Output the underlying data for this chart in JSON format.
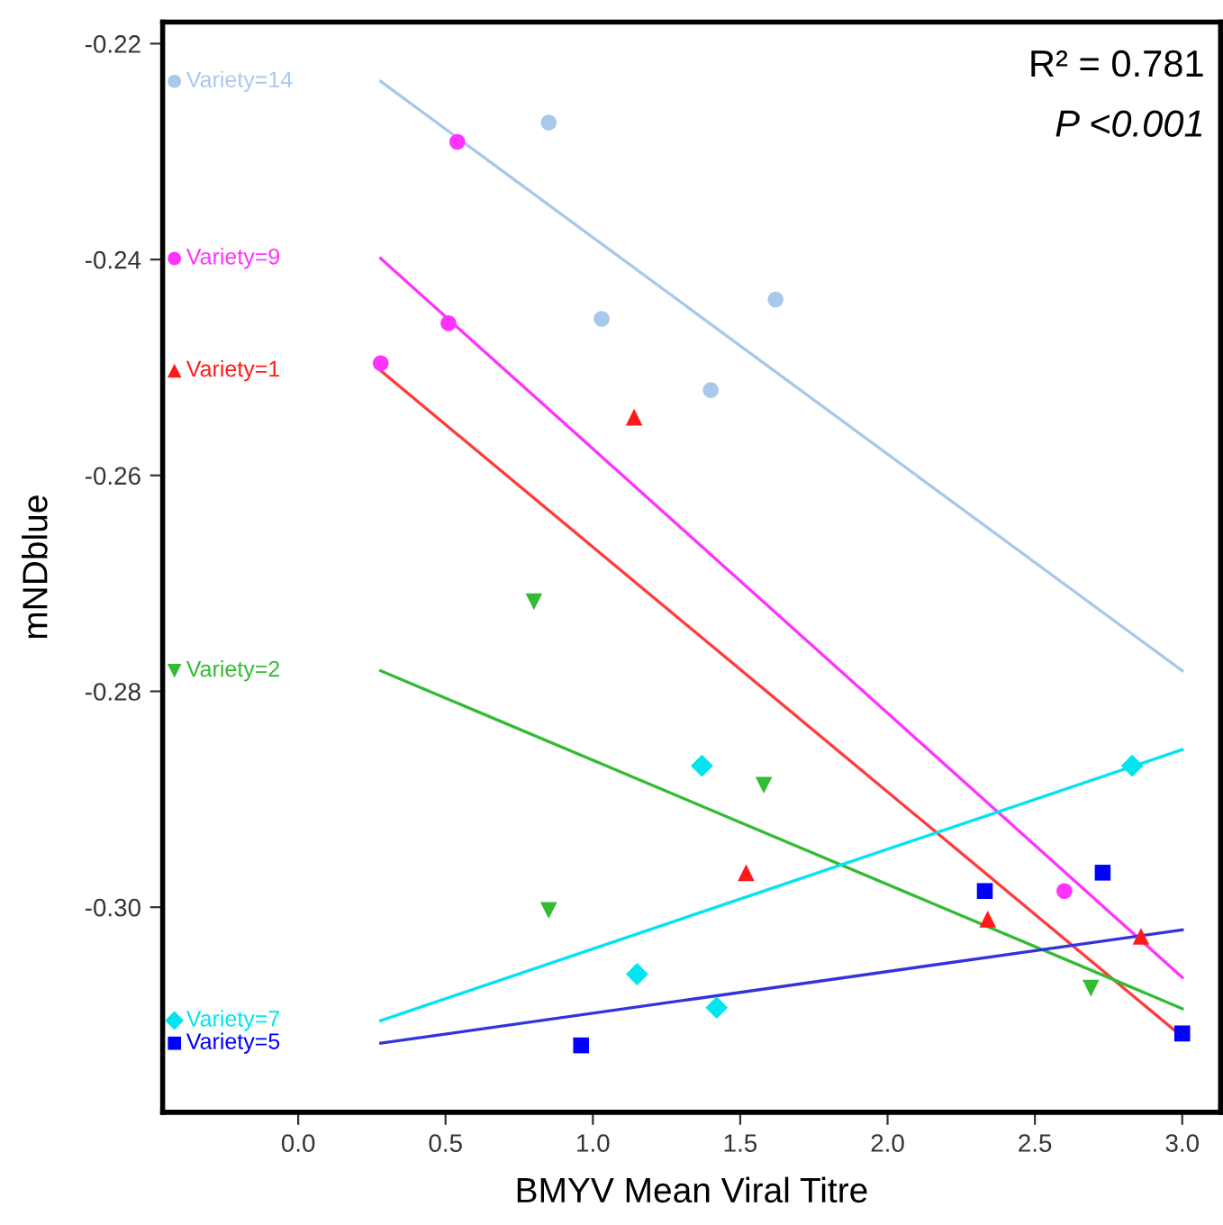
{
  "chart_data": {
    "type": "scatter",
    "xlabel": "BMYV Mean Viral Titre",
    "ylabel": "mNDblue",
    "xlim": [
      -0.46,
      3.13
    ],
    "ylim": [
      -0.319,
      -0.218
    ],
    "xticks": [
      {
        "value": 0,
        "label": "0.0"
      },
      0.5,
      {
        "value": 1,
        "label": "1.0"
      },
      1.5,
      {
        "value": 2,
        "label": "2.0"
      },
      2.5,
      {
        "value": 3,
        "label": "3.0"
      }
    ],
    "yticks": [
      {
        "value": -0.3,
        "label": "-0.30"
      },
      -0.28,
      -0.26,
      -0.24,
      -0.22
    ],
    "grid": false,
    "legend": "left",
    "annotations": [
      "R² = 0.781",
      "P <0.001"
    ],
    "series": [
      {
        "name": "Variety=14",
        "marker": "circle",
        "color": "#a8c8ec",
        "x": [
          0.85,
          1.03,
          1.62,
          1.4
        ],
        "values": [
          -0.2273,
          -0.2455,
          -0.2437,
          -0.2521
        ]
      },
      {
        "type": "line",
        "color": "#a8c8ec",
        "x": [
          0.28,
          3.0
        ],
        "values": [
          -0.2235,
          -0.2781
        ]
      },
      {
        "name": "Variety=9",
        "marker": "circle",
        "color": "#ff33ff",
        "x": [
          0.54,
          0.51,
          0.28,
          2.6
        ],
        "values": [
          -0.2291,
          -0.2459,
          -0.2496,
          -0.2985
        ]
      },
      {
        "type": "line",
        "color": "#ff33ff",
        "x": [
          0.28,
          3.0
        ],
        "values": [
          -0.2399,
          -0.3065
        ]
      },
      {
        "name": "Variety=1",
        "marker": "triangle",
        "color": "#ff1a1a",
        "x": [
          1.14,
          1.52,
          2.34,
          2.86
        ],
        "values": [
          -0.2546,
          -0.2968,
          -0.3011,
          -0.3027
        ]
      },
      {
        "type": "line",
        "color": "#ff3b3b",
        "x": [
          0.28,
          3.0
        ],
        "values": [
          -0.2503,
          -0.312
        ]
      },
      {
        "name": "Variety=2",
        "marker": "triangle_down",
        "color": "#33bb33",
        "x": [
          0.8,
          0.85,
          1.58,
          2.69
        ],
        "values": [
          -0.2717,
          -0.3003,
          -0.2887,
          -0.3075
        ]
      },
      {
        "type": "line",
        "color": "#33bb33",
        "x": [
          0.28,
          3.0
        ],
        "values": [
          -0.2781,
          -0.3094
        ]
      },
      {
        "name": "Variety=7",
        "marker": "diamond",
        "color": "#00e5ee",
        "x": [
          1.37,
          1.15,
          1.42,
          2.83
        ],
        "values": [
          -0.2869,
          -0.3062,
          -0.3093,
          -0.2869
        ]
      },
      {
        "type": "line",
        "color": "#00e5ee",
        "x": [
          0.28,
          3.0
        ],
        "values": [
          -0.3105,
          -0.2854
        ]
      },
      {
        "name": "Variety=5",
        "marker": "square",
        "color": "#0000ff",
        "x": [
          0.96,
          2.33,
          2.73,
          3.0
        ],
        "values": [
          -0.3128,
          -0.2985,
          -0.2968,
          -0.3117
        ]
      },
      {
        "type": "line",
        "color": "#3333dd",
        "x": [
          0.28,
          3.0
        ],
        "values": [
          -0.3126,
          -0.3021
        ]
      }
    ]
  }
}
